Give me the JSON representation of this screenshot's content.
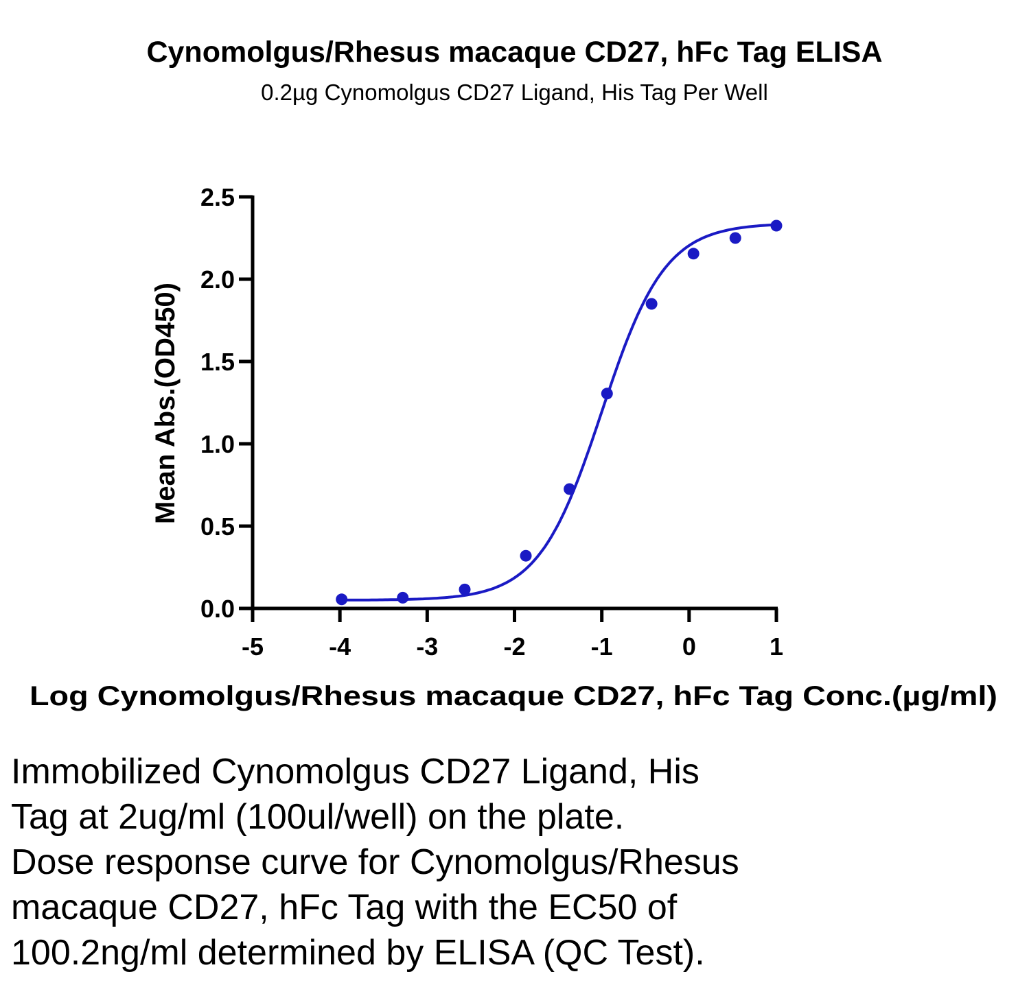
{
  "chart_data": {
    "type": "scatter",
    "title": "Cynomolgus/Rhesus macaque CD27, hFc Tag ELISA",
    "subtitle": "0.2µg Cynomolgus CD27 Ligand, His Tag Per Well",
    "xlabel": "Log Cynomolgus/Rhesus macaque CD27, hFc Tag Conc.(µg/ml)",
    "ylabel": "Mean Abs.(OD450)",
    "xlim": [
      -5,
      1
    ],
    "ylim": [
      0,
      2.5
    ],
    "x_ticks": [
      "-5",
      "-4",
      "-3",
      "-2",
      "-1",
      "0",
      "1"
    ],
    "y_ticks": [
      "0.0",
      "0.5",
      "1.0",
      "1.5",
      "2.0",
      "2.5"
    ],
    "grid": false,
    "legend": "none",
    "series": [
      {
        "color": "#1a1ac4",
        "points": [
          {
            "x": -3.98,
            "y": 0.055
          },
          {
            "x": -3.28,
            "y": 0.065
          },
          {
            "x": -2.57,
            "y": 0.115
          },
          {
            "x": -1.87,
            "y": 0.32
          },
          {
            "x": -1.37,
            "y": 0.725
          },
          {
            "x": -0.94,
            "y": 1.305
          },
          {
            "x": -0.43,
            "y": 1.85
          },
          {
            "x": 0.05,
            "y": 2.155
          },
          {
            "x": 0.53,
            "y": 2.25
          },
          {
            "x": 1.0,
            "y": 2.325
          }
        ],
        "fit": {
          "model": "4PL",
          "bottom": 0.05,
          "top": 2.34,
          "logEC50": -1.0,
          "hill": 1.2
        }
      }
    ]
  },
  "caption_lines": [
    "Immobilized Cynomolgus CD27 Ligand, His",
    "Tag at 2ug/ml (100ul/well) on the plate.",
    "Dose response curve for Cynomolgus/Rhesus",
    "macaque CD27, hFc Tag with the EC50 of",
    "100.2ng/ml determined by ELISA (QC Test)."
  ]
}
